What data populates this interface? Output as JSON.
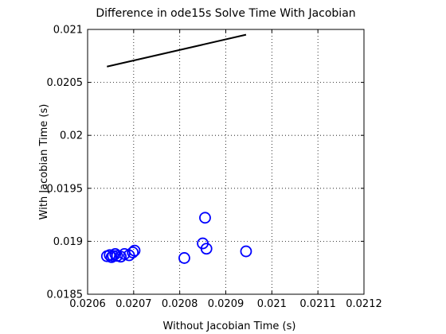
{
  "chart_data": {
    "type": "scatter",
    "title": "Difference in ode15s Solve Time With Jacobian",
    "xlabel": "Without Jacobian Time (s)",
    "ylabel": "With Jacobian Time (s)",
    "xlim": [
      0.0206,
      0.0212
    ],
    "ylim": [
      0.0185,
      0.021
    ],
    "xticks": [
      "0.0206",
      "0.0207",
      "0.0208",
      "0.0209",
      "0.021",
      "0.0211",
      "0.0212"
    ],
    "yticks": [
      "0.0185",
      "0.019",
      "0.0195",
      "0.02",
      "0.0205",
      "0.021"
    ],
    "grid": true,
    "marker_color": "#0000ff",
    "line_color": "#000000",
    "series": [
      {
        "marker": "circle",
        "x": [
          0.020642,
          0.020648,
          0.020652,
          0.020655,
          0.02066,
          0.020664,
          0.020672,
          0.02068,
          0.02069,
          0.020698,
          0.020702,
          0.02081,
          0.02085,
          0.020855,
          0.020858,
          0.020944
        ],
        "y": [
          0.018859,
          0.01887,
          0.01885,
          0.018862,
          0.01888,
          0.018862,
          0.018855,
          0.01888,
          0.018868,
          0.018895,
          0.018912,
          0.018842,
          0.01898,
          0.019222,
          0.01893,
          0.018905
        ]
      },
      {
        "type": "line",
        "x": [
          0.020642,
          0.020944
        ],
        "y": [
          0.020649,
          0.02095
        ]
      }
    ]
  }
}
